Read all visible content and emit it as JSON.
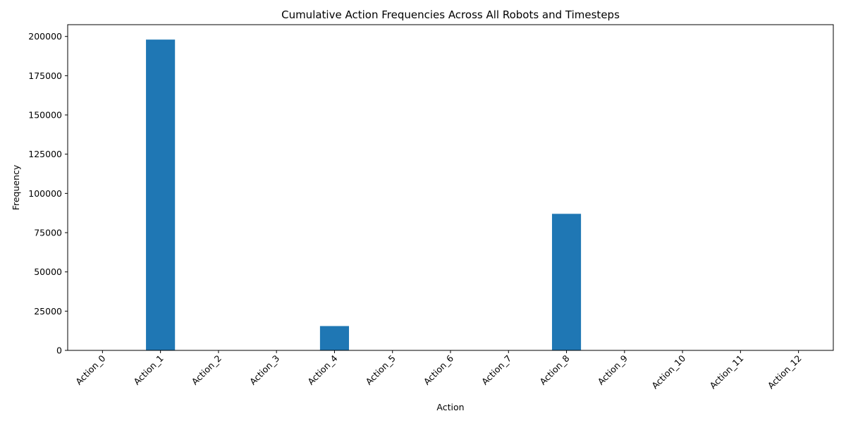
{
  "chart_data": {
    "type": "bar",
    "title": "Cumulative Action Frequencies Across All Robots and Timesteps",
    "xlabel": "Action",
    "ylabel": "Frequency",
    "categories": [
      "Action_0",
      "Action_1",
      "Action_2",
      "Action_3",
      "Action_4",
      "Action_5",
      "Action_6",
      "Action_7",
      "Action_8",
      "Action_9",
      "Action_10",
      "Action_11",
      "Action_12"
    ],
    "values": [
      0,
      198000,
      0,
      0,
      15500,
      0,
      0,
      0,
      87000,
      0,
      0,
      0,
      0
    ],
    "ylim": [
      0,
      207500
    ],
    "yticks": [
      0,
      25000,
      50000,
      75000,
      100000,
      125000,
      150000,
      175000,
      200000
    ],
    "ytick_labels": [
      "0",
      "25000",
      "50000",
      "75000",
      "100000",
      "125000",
      "150000",
      "175000",
      "200000"
    ],
    "bar_color": "#1f77b4",
    "grid": false,
    "legend": "none"
  }
}
